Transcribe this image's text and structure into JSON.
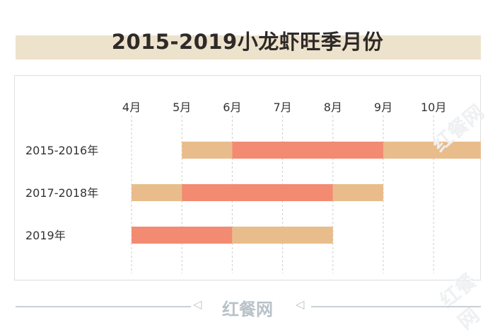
{
  "title": "2015-2019小龙虾旺季月份",
  "colors": {
    "title_band": "#ede2cc",
    "peak": "#f28b72",
    "season": "#e8bd8b",
    "grid": "#cccccc",
    "text": "#333333"
  },
  "chart_data": {
    "type": "gantt",
    "title": "2015-2019小龙虾旺季月份",
    "months": [
      "4月",
      "5月",
      "6月",
      "7月",
      "8月",
      "9月",
      "10月"
    ],
    "month_values": [
      4,
      5,
      6,
      7,
      8,
      9,
      10
    ],
    "x_range": [
      4,
      11
    ],
    "grid": "dashed vertical lines at each month",
    "rows": [
      {
        "label": "2015-2016年",
        "segments": [
          {
            "start": 5,
            "end": 6,
            "kind": "season"
          },
          {
            "start": 6,
            "end": 9,
            "kind": "peak"
          },
          {
            "start": 9,
            "end": 11,
            "kind": "season"
          }
        ]
      },
      {
        "label": "2017-2018年",
        "segments": [
          {
            "start": 4,
            "end": 5,
            "kind": "season"
          },
          {
            "start": 5,
            "end": 8,
            "kind": "peak"
          },
          {
            "start": 8,
            "end": 9,
            "kind": "season"
          }
        ]
      },
      {
        "label": "2019年",
        "segments": [
          {
            "start": 4,
            "end": 6,
            "kind": "peak"
          },
          {
            "start": 6,
            "end": 8,
            "kind": "season"
          }
        ]
      }
    ]
  },
  "footer": {
    "brand": "红餐网"
  },
  "watermark": {
    "text": "红餐网"
  }
}
